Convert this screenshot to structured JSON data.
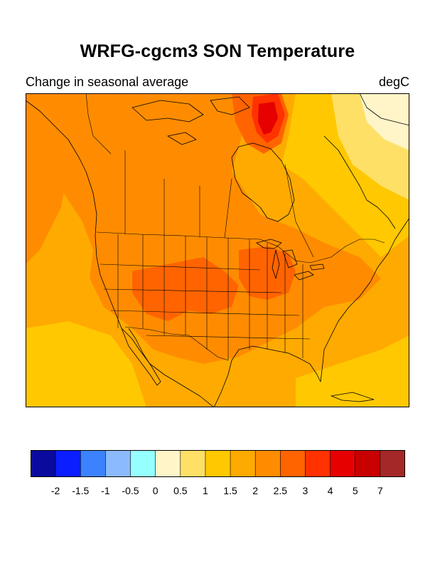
{
  "title": "WRFG-cgcm3 SON Temperature",
  "subtitle_left": "Change in seasonal average",
  "subtitle_right": "degC",
  "colorbar": {
    "colors": [
      "#0a0a9e",
      "#0a1eff",
      "#3c82ff",
      "#8cbaff",
      "#96ffff",
      "#fff5c8",
      "#ffe066",
      "#ffc800",
      "#ffaa00",
      "#ff8c00",
      "#ff6400",
      "#ff3200",
      "#e60000",
      "#c80000",
      "#a52828"
    ],
    "labels": [
      "-2",
      "-1.5",
      "-1",
      "-0.5",
      "0",
      "0.5",
      "1",
      "1.5",
      "2",
      "2.5",
      "3",
      "4",
      "5",
      "7"
    ]
  },
  "field_colors": {
    "base": "#ffaa00",
    "warm": "#ff8c00",
    "hot": "#ff6400",
    "hotter": "#ff3200",
    "hottest": "#e60000",
    "mild": "#ffc800",
    "cool": "#ffe066",
    "coolest": "#fff5c8"
  }
}
